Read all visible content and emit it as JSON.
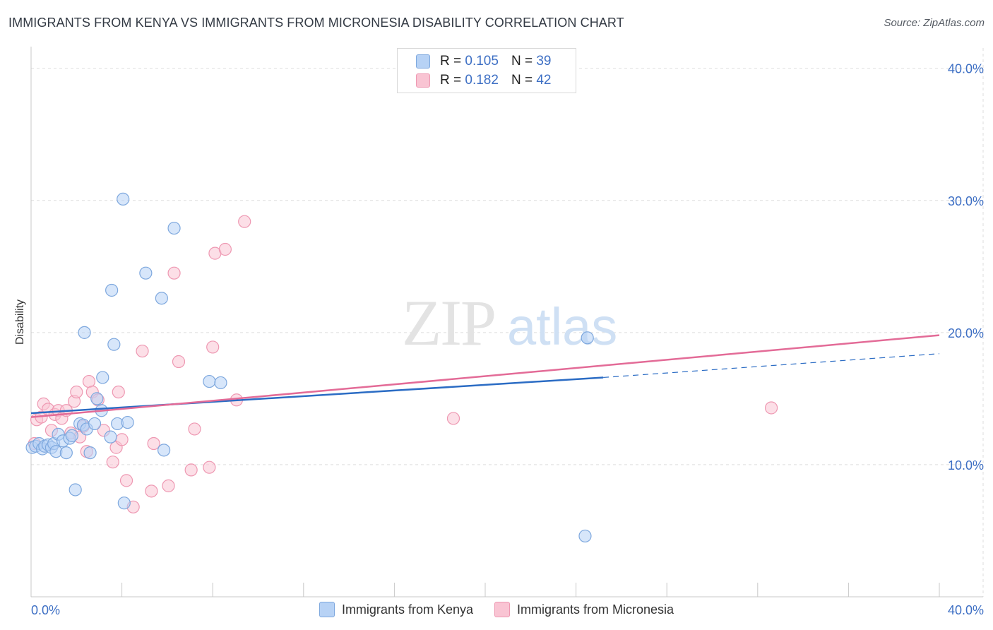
{
  "title": "IMMIGRANTS FROM KENYA VS IMMIGRANTS FROM MICRONESIA DISABILITY CORRELATION CHART",
  "source": "Source: ZipAtlas.com",
  "watermark": {
    "zip": "ZIP",
    "atlas": "atlas"
  },
  "colors": {
    "kenya_fill": "#b7d2f5",
    "kenya_stroke": "#7ea8de",
    "kenya_line": "#2b6cc4",
    "micronesia_fill": "#f9c4d3",
    "micronesia_stroke": "#ee98b2",
    "micronesia_line": "#e36b97",
    "grid": "#dddddd",
    "axis_text": "#3d6fc4"
  },
  "stats": {
    "kenya": {
      "r_label": "R =",
      "r_value": "0.105",
      "n_label": "N =",
      "n_value": "39"
    },
    "micronesia": {
      "r_label": "R =",
      "r_value": "0.182",
      "n_label": "N =",
      "n_value": "42"
    }
  },
  "chart_data": {
    "type": "scatter",
    "title": "IMMIGRANTS FROM KENYA VS IMMIGRANTS FROM MICRONESIA DISABILITY CORRELATION CHART",
    "xlabel": "",
    "ylabel": "Disability",
    "xlim": [
      0,
      40
    ],
    "ylim": [
      0,
      41
    ],
    "x_tick_labels": [
      "0.0%",
      "40.0%"
    ],
    "y_ticks": [
      10,
      20,
      30,
      40
    ],
    "y_tick_labels": [
      "10.0%",
      "20.0%",
      "30.0%",
      "40.0%"
    ],
    "legend": [
      "Immigrants from Kenya",
      "Immigrants from Micronesia"
    ],
    "series": [
      {
        "name": "Immigrants from Kenya",
        "points": [
          [
            0.05,
            11.3
          ],
          [
            0.2,
            11.4
          ],
          [
            0.35,
            11.6
          ],
          [
            0.5,
            11.2
          ],
          [
            0.6,
            11.4
          ],
          [
            0.75,
            11.5
          ],
          [
            0.9,
            11.3
          ],
          [
            1.0,
            11.6
          ],
          [
            1.1,
            11.0
          ],
          [
            1.2,
            12.3
          ],
          [
            1.4,
            11.8
          ],
          [
            1.55,
            10.9
          ],
          [
            1.7,
            12.0
          ],
          [
            1.8,
            12.2
          ],
          [
            1.95,
            8.1
          ],
          [
            2.15,
            13.1
          ],
          [
            2.3,
            13.0
          ],
          [
            2.45,
            12.7
          ],
          [
            2.6,
            10.9
          ],
          [
            2.8,
            13.1
          ],
          [
            2.9,
            15.0
          ],
          [
            3.1,
            14.1
          ],
          [
            3.15,
            16.6
          ],
          [
            3.5,
            12.1
          ],
          [
            3.8,
            13.1
          ],
          [
            3.55,
            23.2
          ],
          [
            2.35,
            20.0
          ],
          [
            3.65,
            19.1
          ],
          [
            4.05,
            30.1
          ],
          [
            4.1,
            7.1
          ],
          [
            4.25,
            13.2
          ],
          [
            5.05,
            24.5
          ],
          [
            5.75,
            22.6
          ],
          [
            5.85,
            11.1
          ],
          [
            6.3,
            27.9
          ],
          [
            7.85,
            16.3
          ],
          [
            8.35,
            16.2
          ],
          [
            24.4,
            4.6
          ],
          [
            24.5,
            19.6
          ]
        ],
        "trend": {
          "x": [
            0,
            25.2
          ],
          "y": [
            13.9,
            16.6
          ],
          "dashed_to_x": 40,
          "dashed_to_y": 18.4
        }
      },
      {
        "name": "Immigrants from Micronesia",
        "points": [
          [
            0.25,
            13.4
          ],
          [
            0.45,
            13.6
          ],
          [
            0.55,
            14.6
          ],
          [
            0.75,
            14.2
          ],
          [
            0.9,
            12.6
          ],
          [
            1.05,
            13.8
          ],
          [
            1.2,
            14.1
          ],
          [
            1.35,
            13.5
          ],
          [
            1.55,
            14.1
          ],
          [
            1.75,
            12.4
          ],
          [
            1.9,
            14.8
          ],
          [
            2.0,
            15.5
          ],
          [
            2.15,
            12.1
          ],
          [
            2.3,
            12.9
          ],
          [
            2.45,
            11.0
          ],
          [
            2.55,
            16.3
          ],
          [
            2.7,
            15.5
          ],
          [
            2.95,
            14.9
          ],
          [
            3.2,
            12.6
          ],
          [
            3.6,
            10.2
          ],
          [
            3.75,
            11.3
          ],
          [
            3.85,
            15.5
          ],
          [
            4.0,
            11.9
          ],
          [
            4.2,
            8.8
          ],
          [
            4.5,
            6.8
          ],
          [
            4.9,
            18.6
          ],
          [
            5.3,
            8.0
          ],
          [
            5.4,
            11.6
          ],
          [
            6.05,
            8.4
          ],
          [
            6.3,
            24.5
          ],
          [
            6.5,
            17.8
          ],
          [
            7.05,
            9.6
          ],
          [
            7.2,
            12.7
          ],
          [
            7.85,
            9.8
          ],
          [
            8.0,
            18.9
          ],
          [
            8.1,
            26.0
          ],
          [
            8.55,
            26.3
          ],
          [
            9.05,
            14.9
          ],
          [
            9.4,
            28.4
          ],
          [
            18.6,
            13.5
          ],
          [
            32.6,
            14.3
          ],
          [
            0.15,
            11.6
          ]
        ],
        "trend": {
          "x": [
            0,
            40
          ],
          "y": [
            13.6,
            19.8
          ]
        }
      }
    ]
  }
}
